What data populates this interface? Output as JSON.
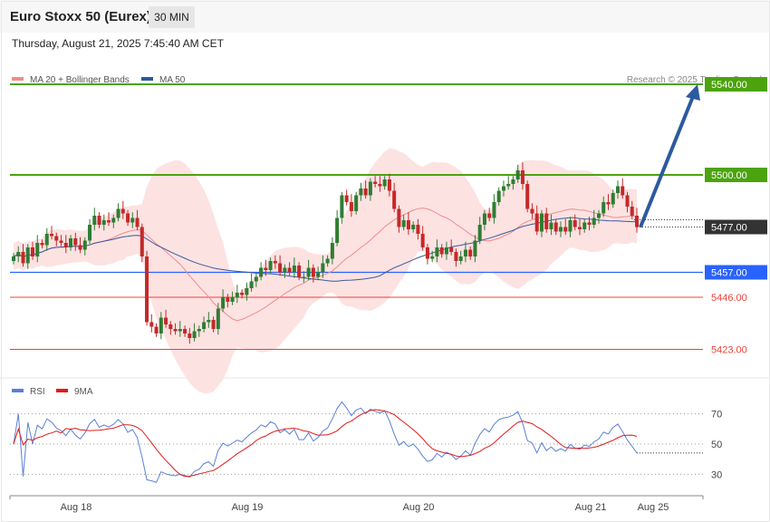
{
  "header": {
    "title": "Euro Stoxx 50 (Eurex)",
    "timeframe": "30 MIN",
    "datetime": "Thursday, August 21, 2025 7:45:40 AM CET"
  },
  "legend": [
    {
      "label": "MA 20 + Bollinger Bands",
      "color": "#f28b8b"
    },
    {
      "label": "MA 50",
      "color": "#2c5a9e"
    }
  ],
  "credit": "Research © 2025 Trading Central",
  "rsi_legend": [
    {
      "label": "RSI",
      "color": "#5b80d6"
    },
    {
      "label": "9MA",
      "color": "#e01b1b"
    }
  ],
  "chart_data": [
    {
      "type": "candlestick",
      "title": "Euro Stoxx 50 (Eurex)",
      "interval": "30 MIN",
      "ylim": [
        5412,
        5552
      ],
      "x_tick_labels": [
        "Aug 18",
        "Aug 19",
        "Aug 20",
        "Aug 21",
        "Aug 25"
      ],
      "last_price": 5477.0,
      "levels": [
        {
          "value": 5540.0,
          "label": "5540.00",
          "color": "#4ca30d",
          "role": "resistance"
        },
        {
          "value": 5500.0,
          "label": "5500.00",
          "color": "#4ca30d",
          "role": "resistance"
        },
        {
          "value": 5457.0,
          "label": "5457.00",
          "color": "#2962ff",
          "role": "pivot"
        },
        {
          "value": 5446.0,
          "label": "5446.00",
          "color": "#e8443a",
          "role": "support"
        },
        {
          "value": 5423.0,
          "label": "5423.00",
          "color": "#e8443a",
          "role": "support"
        }
      ],
      "close_series": [
        5464,
        5466,
        5461,
        5468,
        5464,
        5470,
        5469,
        5474,
        5473,
        5471,
        5470,
        5468,
        5472,
        5469,
        5467,
        5471,
        5478,
        5482,
        5478,
        5480,
        5479,
        5481,
        5485,
        5483,
        5479,
        5481,
        5477,
        5464,
        5435,
        5433,
        5430,
        5437,
        5434,
        5432,
        5431,
        5432,
        5430,
        5428,
        5431,
        5432,
        5435,
        5436,
        5432,
        5441,
        5446,
        5444,
        5446,
        5448,
        5447,
        5450,
        5453,
        5455,
        5459,
        5458,
        5462,
        5461,
        5457,
        5459,
        5457,
        5460,
        5455,
        5455,
        5459,
        5455,
        5457,
        5461,
        5463,
        5470,
        5481,
        5491,
        5488,
        5484,
        5491,
        5494,
        5491,
        5497,
        5496,
        5495,
        5498,
        5493,
        5485,
        5477,
        5480,
        5476,
        5478,
        5474,
        5468,
        5463,
        5464,
        5468,
        5465,
        5468,
        5466,
        5462,
        5464,
        5467,
        5464,
        5471,
        5478,
        5483,
        5481,
        5488,
        5493,
        5495,
        5496,
        5498,
        5502,
        5496,
        5485,
        5483,
        5475,
        5483,
        5476,
        5479,
        5475,
        5477,
        5475,
        5480,
        5477,
        5476,
        5479,
        5478,
        5481,
        5483,
        5488,
        5487,
        5492,
        5495,
        5491,
        5486,
        5482,
        5477
      ],
      "bollinger": {
        "mid_range": [
          5437,
          5487
        ],
        "upper_max": 5510,
        "lower_min": 5415
      },
      "annotation": "Projected arrow from 5477 toward 5540"
    },
    {
      "type": "line",
      "title": "RSI",
      "ylim": [
        20,
        80
      ],
      "y_ticks": [
        30,
        50,
        70
      ],
      "series": [
        {
          "name": "RSI"
        },
        {
          "name": "9MA"
        }
      ]
    }
  ]
}
